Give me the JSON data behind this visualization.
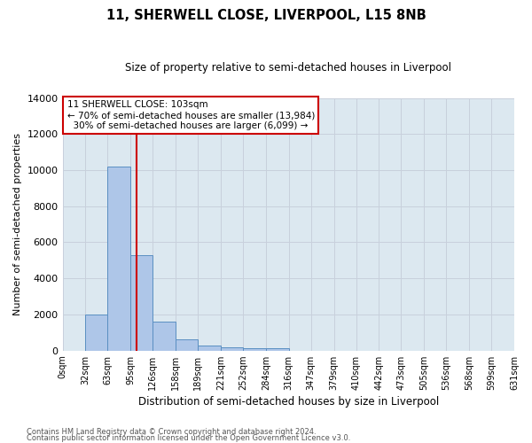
{
  "title": "11, SHERWELL CLOSE, LIVERPOOL, L15 8NB",
  "subtitle": "Size of property relative to semi-detached houses in Liverpool",
  "xlabel": "Distribution of semi-detached houses by size in Liverpool",
  "ylabel": "Number of semi-detached properties",
  "property_label": "11 SHERWELL CLOSE: 103sqm",
  "pct_smaller": 70,
  "count_smaller": 13984,
  "pct_larger": 30,
  "count_larger": 6099,
  "bin_edges": [
    0,
    32,
    63,
    95,
    126,
    158,
    189,
    221,
    252,
    284,
    316,
    347,
    379,
    410,
    442,
    473,
    505,
    536,
    568,
    599,
    631
  ],
  "bar_values": [
    0,
    2000,
    10200,
    5300,
    1600,
    600,
    270,
    170,
    130,
    130,
    0,
    0,
    0,
    0,
    0,
    0,
    0,
    0,
    0,
    0
  ],
  "bar_color": "#aec6e8",
  "bar_edge_color": "#5a8fc2",
  "vline_color": "#cc0000",
  "vline_x": 103,
  "ylim": [
    0,
    14000
  ],
  "yticks": [
    0,
    2000,
    4000,
    6000,
    8000,
    10000,
    12000,
    14000
  ],
  "tick_labels": [
    "0sqm",
    "32sqm",
    "63sqm",
    "95sqm",
    "126sqm",
    "158sqm",
    "189sqm",
    "221sqm",
    "252sqm",
    "284sqm",
    "316sqm",
    "347sqm",
    "379sqm",
    "410sqm",
    "442sqm",
    "473sqm",
    "505sqm",
    "536sqm",
    "568sqm",
    "599sqm",
    "631sqm"
  ],
  "grid_color": "#c8d0dc",
  "bg_color": "#dce8f0",
  "annotation_box_color": "#cc0000",
  "footer_line1": "Contains HM Land Registry data © Crown copyright and database right 2024.",
  "footer_line2": "Contains public sector information licensed under the Open Government Licence v3.0."
}
